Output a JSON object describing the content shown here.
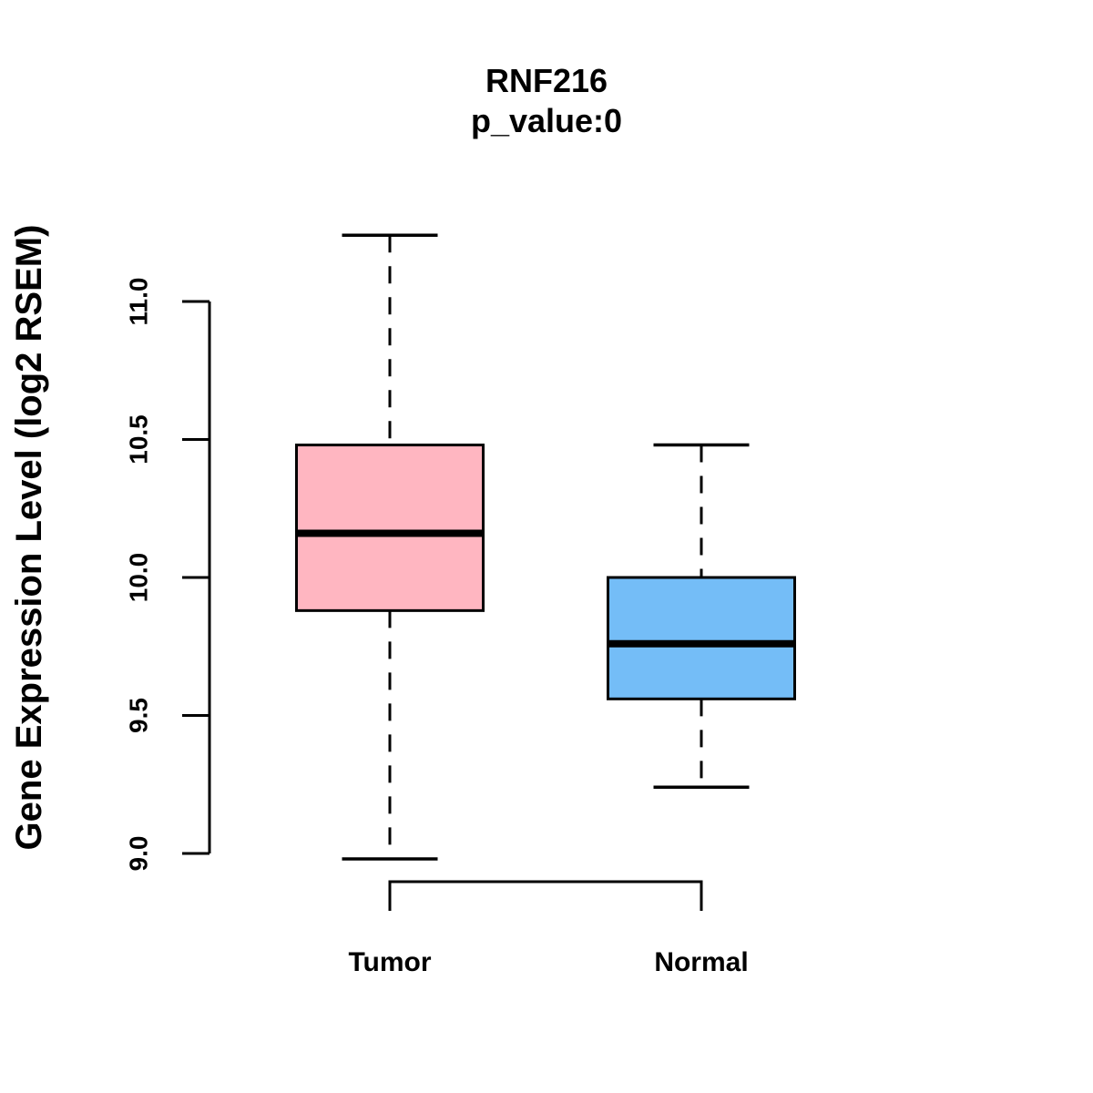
{
  "chart_data": {
    "type": "boxplot",
    "title": "RNF216",
    "subtitle": "p_value:0",
    "ylabel": "Gene Expression Level (log2 RSEM)",
    "ylim": [
      9.0,
      11.0
    ],
    "yticks": [
      "9.0",
      "9.5",
      "10.0",
      "10.5",
      "11.0"
    ],
    "grid": false,
    "legend": false,
    "categories": [
      "Tumor",
      "Normal"
    ],
    "series": [
      {
        "name": "Tumor",
        "color": "#FFB6C1",
        "stats": {
          "whisker_low": 8.98,
          "q1": 9.88,
          "median": 10.16,
          "q3": 10.48,
          "whisker_high": 11.24
        }
      },
      {
        "name": "Normal",
        "color": "#74BDF7",
        "stats": {
          "whisker_low": 9.24,
          "q1": 9.56,
          "median": 9.76,
          "q3": 10.0,
          "whisker_high": 10.48
        }
      }
    ],
    "comparison_bracket": {
      "between": [
        "Tumor",
        "Normal"
      ]
    },
    "colors": {
      "stroke": "#000000",
      "background": "#ffffff"
    }
  }
}
